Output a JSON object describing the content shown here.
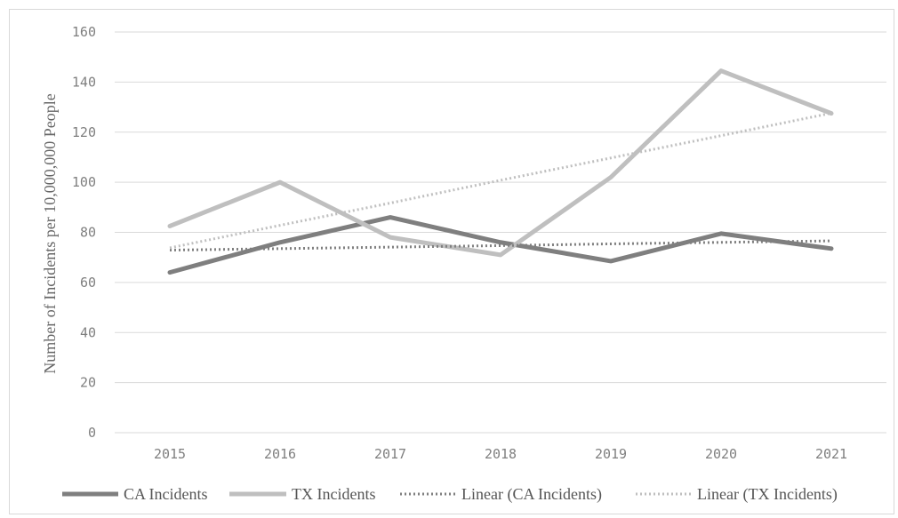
{
  "chart_data": {
    "type": "line",
    "title": "",
    "xlabel": "",
    "ylabel": "Number of Incidents per 10,000,000 People",
    "categories": [
      "2015",
      "2016",
      "2017",
      "2018",
      "2019",
      "2020",
      "2021"
    ],
    "ylim": [
      0,
      160
    ],
    "yticks": [
      "0",
      "20",
      "40",
      "60",
      "80",
      "100",
      "120",
      "140",
      "160"
    ],
    "grid": true,
    "legend_position": "bottom",
    "series": [
      {
        "name": "CA Incidents",
        "values": [
          64,
          76,
          86,
          76,
          68.5,
          79.5,
          73.5
        ],
        "color": "#7f7f7f",
        "style": "solid"
      },
      {
        "name": "TX Incidents",
        "values": [
          82.5,
          100,
          78,
          71,
          102,
          144.5,
          127.5
        ],
        "color": "#bfbfbf",
        "style": "solid"
      },
      {
        "name": "Linear (CA Incidents)",
        "values": [
          72.9,
          73.5,
          74.1,
          74.7,
          75.4,
          76.0,
          76.6
        ],
        "color": "#7f7f7f",
        "style": "dotted"
      },
      {
        "name": "Linear (TX Incidents)",
        "values": [
          73.8,
          82.8,
          91.7,
          100.8,
          109.7,
          118.6,
          127.6
        ],
        "color": "#bfbfbf",
        "style": "dotted"
      }
    ]
  }
}
